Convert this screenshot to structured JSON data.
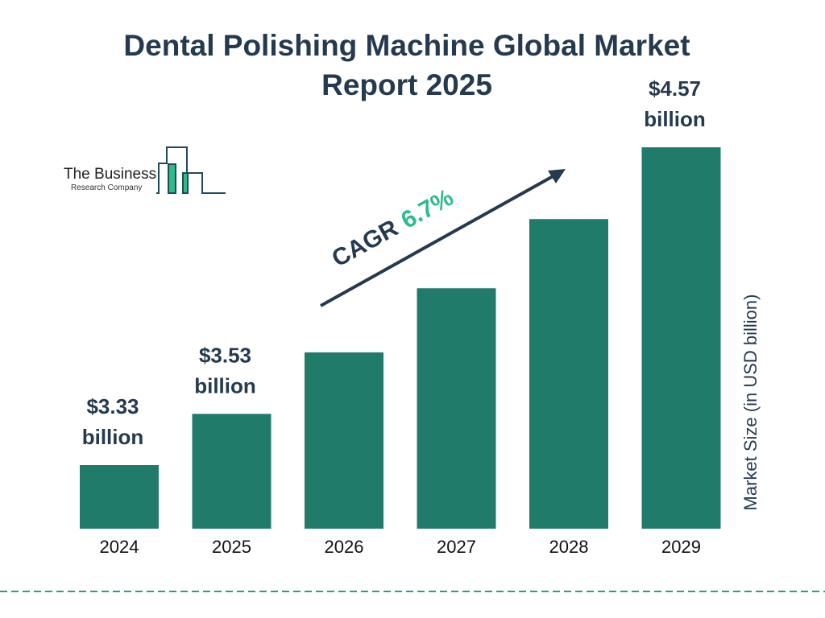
{
  "chart_data": {
    "type": "bar",
    "title": "Dental Polishing Machine Global Market Report 2025",
    "categories": [
      "2024",
      "2025",
      "2026",
      "2027",
      "2028",
      "2029"
    ],
    "values": [
      3.33,
      3.53,
      3.77,
      4.02,
      4.29,
      4.57
    ],
    "data_labels": {
      "0": [
        "$3.33",
        "billion"
      ],
      "1": [
        "$3.53",
        "billion"
      ],
      "5": [
        "$4.57",
        "billion"
      ]
    },
    "ylabel": "Market Size (in USD billion)",
    "xlabel": "",
    "annotation": {
      "prefix": "CAGR",
      "value": "6.7%"
    },
    "grid": false,
    "colors": {
      "bar": "#217b6b",
      "title": "#253a4e",
      "cagr": "#2dbb8a",
      "dash": "#2a9d8f"
    }
  },
  "logo": {
    "line1": "The Business",
    "line2": "Research Company"
  }
}
